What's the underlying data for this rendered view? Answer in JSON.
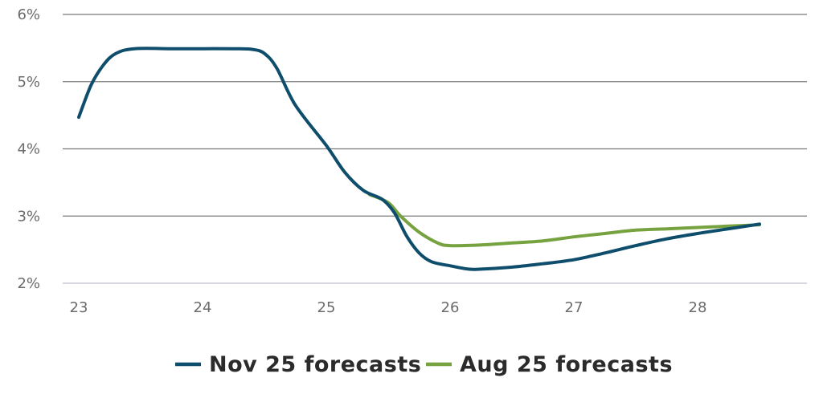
{
  "chart_data": {
    "type": "line",
    "title": "",
    "xlabel": "",
    "ylabel": "",
    "xlim": [
      23,
      28.85
    ],
    "ylim": [
      2,
      6
    ],
    "x_ticks": [
      {
        "value": 23,
        "label": "23"
      },
      {
        "value": 24,
        "label": "24"
      },
      {
        "value": 25,
        "label": "25"
      },
      {
        "value": 26,
        "label": "26"
      },
      {
        "value": 27,
        "label": "27"
      },
      {
        "value": 28,
        "label": "28"
      }
    ],
    "y_ticks": [
      {
        "value": 2,
        "label": "2%"
      },
      {
        "value": 3,
        "label": "3%"
      },
      {
        "value": 4,
        "label": "4%"
      },
      {
        "value": 5,
        "label": "5%"
      },
      {
        "value": 6,
        "label": "6%"
      }
    ],
    "grid": {
      "horizontal": true,
      "vertical": false
    },
    "legend_position": "bottom-center",
    "series": [
      {
        "name": "Aug 25 forecasts",
        "color": "#76a23f",
        "x": [
          25.35,
          25.5,
          25.6,
          25.75,
          25.9,
          26.0,
          26.25,
          26.5,
          26.75,
          27.0,
          27.25,
          27.5,
          27.75,
          28.0,
          28.25,
          28.5
        ],
        "y": [
          3.32,
          3.2,
          3.0,
          2.76,
          2.6,
          2.56,
          2.57,
          2.6,
          2.63,
          2.69,
          2.74,
          2.79,
          2.81,
          2.83,
          2.85,
          2.87
        ]
      },
      {
        "name": "Nov 25 forecasts",
        "color": "#0e4d6b",
        "x": [
          23.0,
          23.1,
          23.2,
          23.3,
          23.45,
          23.75,
          24.0,
          24.25,
          24.4,
          24.5,
          24.6,
          24.75,
          25.0,
          25.15,
          25.3,
          25.45,
          25.55,
          25.65,
          25.75,
          25.85,
          26.0,
          26.15,
          26.25,
          26.5,
          26.75,
          27.0,
          27.25,
          27.5,
          27.75,
          28.0,
          28.25,
          28.5
        ],
        "y": [
          4.47,
          4.95,
          5.25,
          5.42,
          5.49,
          5.49,
          5.49,
          5.49,
          5.48,
          5.42,
          5.2,
          4.65,
          4.05,
          3.65,
          3.38,
          3.25,
          3.05,
          2.7,
          2.45,
          2.32,
          2.26,
          2.21,
          2.21,
          2.24,
          2.29,
          2.35,
          2.45,
          2.56,
          2.66,
          2.74,
          2.81,
          2.88
        ]
      }
    ],
    "legend": [
      {
        "name": "Nov 25 forecasts",
        "color": "#0e4d6b"
      },
      {
        "name": "Aug 25 forecasts",
        "color": "#76a23f"
      }
    ]
  }
}
